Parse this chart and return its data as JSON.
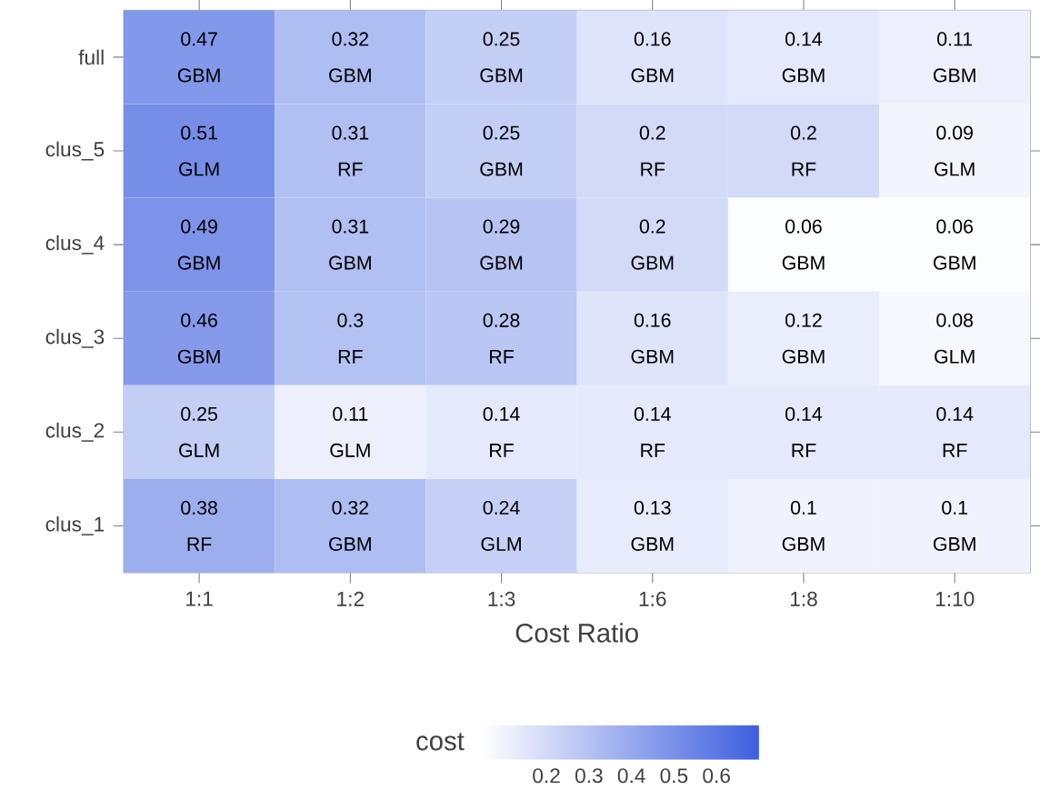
{
  "chart_data": {
    "type": "heatmap",
    "xlabel": "Cost Ratio",
    "clabel": "cost",
    "categories": [
      "1:1",
      "1:2",
      "1:3",
      "1:6",
      "1:8",
      "1:10"
    ],
    "y_categories": [
      "full",
      "clus_5",
      "clus_4",
      "clus_3",
      "clus_2",
      "clus_1"
    ],
    "cells": [
      [
        0.47,
        0.32,
        0.25,
        0.16,
        0.14,
        0.11
      ],
      [
        0.51,
        0.31,
        0.25,
        0.2,
        0.2,
        0.09
      ],
      [
        0.49,
        0.31,
        0.29,
        0.2,
        0.06,
        0.06
      ],
      [
        0.46,
        0.3,
        0.28,
        0.16,
        0.12,
        0.08
      ],
      [
        0.25,
        0.11,
        0.14,
        0.14,
        0.14,
        0.14
      ],
      [
        0.38,
        0.32,
        0.24,
        0.13,
        0.1,
        0.1
      ]
    ],
    "cell_labels": [
      [
        "0.47 GBM",
        "0.32 GBM",
        "0.25 GBM",
        "0.16 GBM",
        "0.14 GBM",
        "0.11 GBM"
      ],
      [
        "0.51 GLM",
        "0.31 RF",
        "0.25 GBM",
        "0.2 RF",
        "0.2 RF",
        "0.09 GLM"
      ],
      [
        "0.49 GBM",
        "0.31 GBM",
        "0.29 GBM",
        "0.2 GBM",
        "0.06 GBM",
        "0.06 GBM"
      ],
      [
        "0.46 GBM",
        "0.3 RF",
        "0.28 RF",
        "0.16 GBM",
        "0.12 GBM",
        "0.08 GLM"
      ],
      [
        "0.25 GLM",
        "0.11 GLM",
        "0.14 RF",
        "0.14 RF",
        "0.14 RF",
        "0.14 RF"
      ],
      [
        "0.38 RF",
        "0.32 GBM",
        "0.24 GLM",
        "0.13 GBM",
        "0.1 GBM",
        "0.1 GBM"
      ]
    ],
    "clim": [
      0.05,
      0.7
    ],
    "cticks": [
      0.2,
      0.3,
      0.4,
      0.5,
      0.6
    ]
  }
}
